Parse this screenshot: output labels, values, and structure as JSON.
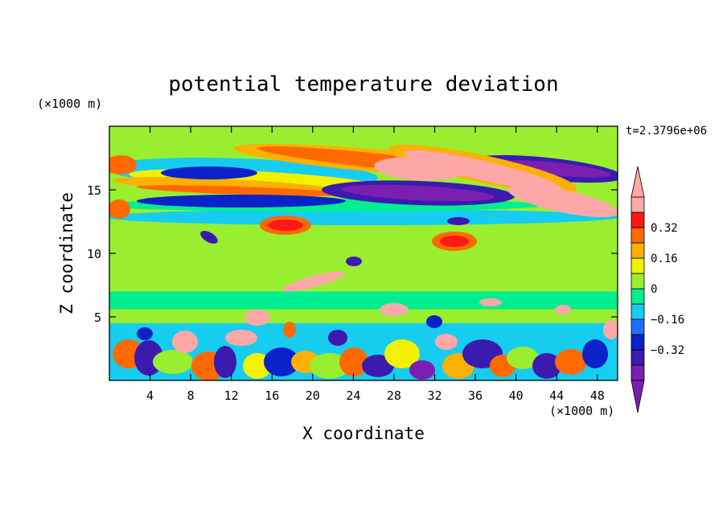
{
  "chart_data": {
    "type": "heatmap",
    "title": "potential temperature deviation",
    "xlabel": "X coordinate",
    "ylabel": "Z coordinate",
    "x_unit": "(×1000 m)",
    "y_unit": "(×1000 m)",
    "time_label": "t=2.3796e+06",
    "xlim": [
      0,
      50
    ],
    "ylim": [
      0,
      20
    ],
    "x_ticks": [
      4,
      8,
      12,
      16,
      20,
      24,
      28,
      32,
      36,
      40,
      44,
      48
    ],
    "y_ticks": [
      5,
      10,
      15
    ],
    "colorbar": {
      "levels": [
        -0.48,
        -0.4,
        -0.32,
        -0.24,
        -0.16,
        -0.08,
        0,
        0.08,
        0.16,
        0.24,
        0.32,
        0.4,
        0.48
      ],
      "labeled_ticks": [
        0.32,
        0.16,
        0,
        -0.16,
        -0.32
      ],
      "labels": [
        "0.32",
        "0.16",
        "0",
        "−0.16",
        "−0.32"
      ],
      "colors": [
        "#7a1fb0",
        "#3b1ab0",
        "#0a22c8",
        "#1e6fff",
        "#16cdf0",
        "#00ee90",
        "#99ee30",
        "#f2f200",
        "#ffb000",
        "#ff6a00",
        "#ff1818",
        "#ffa8a8"
      ],
      "over_color": "#ffa8a8",
      "under_color": "#7a1fb0"
    }
  }
}
